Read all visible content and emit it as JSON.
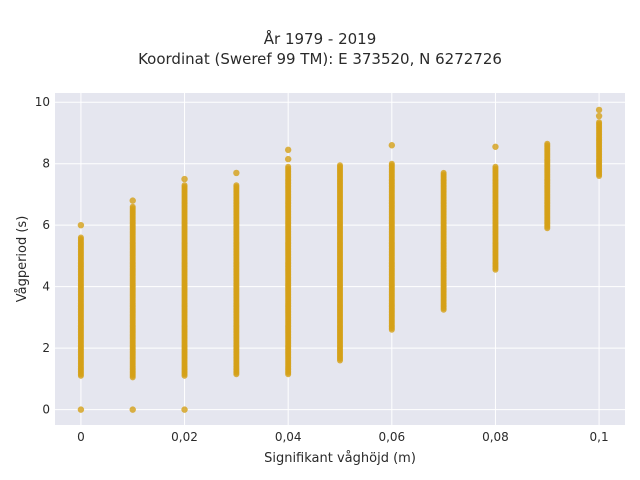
{
  "chart": {
    "title": "År 1979 - 2019",
    "subtitle": "Koordinat (Sweref 99 TM): E 373520, N 6272726"
  },
  "chart_data": {
    "type": "scatter",
    "title": "År 1979 - 2019",
    "subtitle": "Koordinat (Sweref 99 TM): E 373520, N 6272726",
    "xlabel": "Signifikant våghöjd (m)",
    "ylabel": "Vågperiod (s)",
    "xlim": [
      -0.005,
      0.105
    ],
    "ylim": [
      -0.5,
      10.3
    ],
    "x_ticks": [
      0,
      0.02,
      0.04,
      0.06,
      0.08,
      0.1
    ],
    "x_tick_labels": [
      "0",
      "0,02",
      "0,04",
      "0,06",
      "0,08",
      "0,1"
    ],
    "y_ticks": [
      0,
      2,
      4,
      6,
      8,
      10
    ],
    "y_tick_labels": [
      "0",
      "2",
      "4",
      "6",
      "8",
      "10"
    ],
    "grid": true,
    "marker_color": "#d4a017",
    "plot_bg": "#e5e6ef",
    "series": [
      {
        "columns": [
          {
            "x": 0,
            "ymin": 1.1,
            "ymax": 5.6,
            "outliers": [
              0,
              6.0
            ]
          },
          {
            "x": 0.01,
            "ymin": 1.05,
            "ymax": 6.6,
            "outliers": [
              0,
              6.8
            ]
          },
          {
            "x": 0.02,
            "ymin": 1.1,
            "ymax": 7.3,
            "outliers": [
              0,
              7.5
            ]
          },
          {
            "x": 0.03,
            "ymin": 1.15,
            "ymax": 7.3,
            "outliers": [
              7.7
            ]
          },
          {
            "x": 0.04,
            "ymin": 1.15,
            "ymax": 7.9,
            "outliers": [
              8.15,
              8.45
            ]
          },
          {
            "x": 0.05,
            "ymin": 1.6,
            "ymax": 7.95,
            "outliers": []
          },
          {
            "x": 0.06,
            "ymin": 2.6,
            "ymax": 8.0,
            "outliers": [
              8.6
            ]
          },
          {
            "x": 0.07,
            "ymin": 3.25,
            "ymax": 7.7,
            "outliers": []
          },
          {
            "x": 0.08,
            "ymin": 4.55,
            "ymax": 7.9,
            "outliers": [
              8.55
            ]
          },
          {
            "x": 0.09,
            "ymin": 5.9,
            "ymax": 8.65,
            "outliers": []
          },
          {
            "x": 0.1,
            "ymin": 7.6,
            "ymax": 9.35,
            "outliers": [
              9.55,
              9.75
            ]
          }
        ]
      }
    ]
  }
}
